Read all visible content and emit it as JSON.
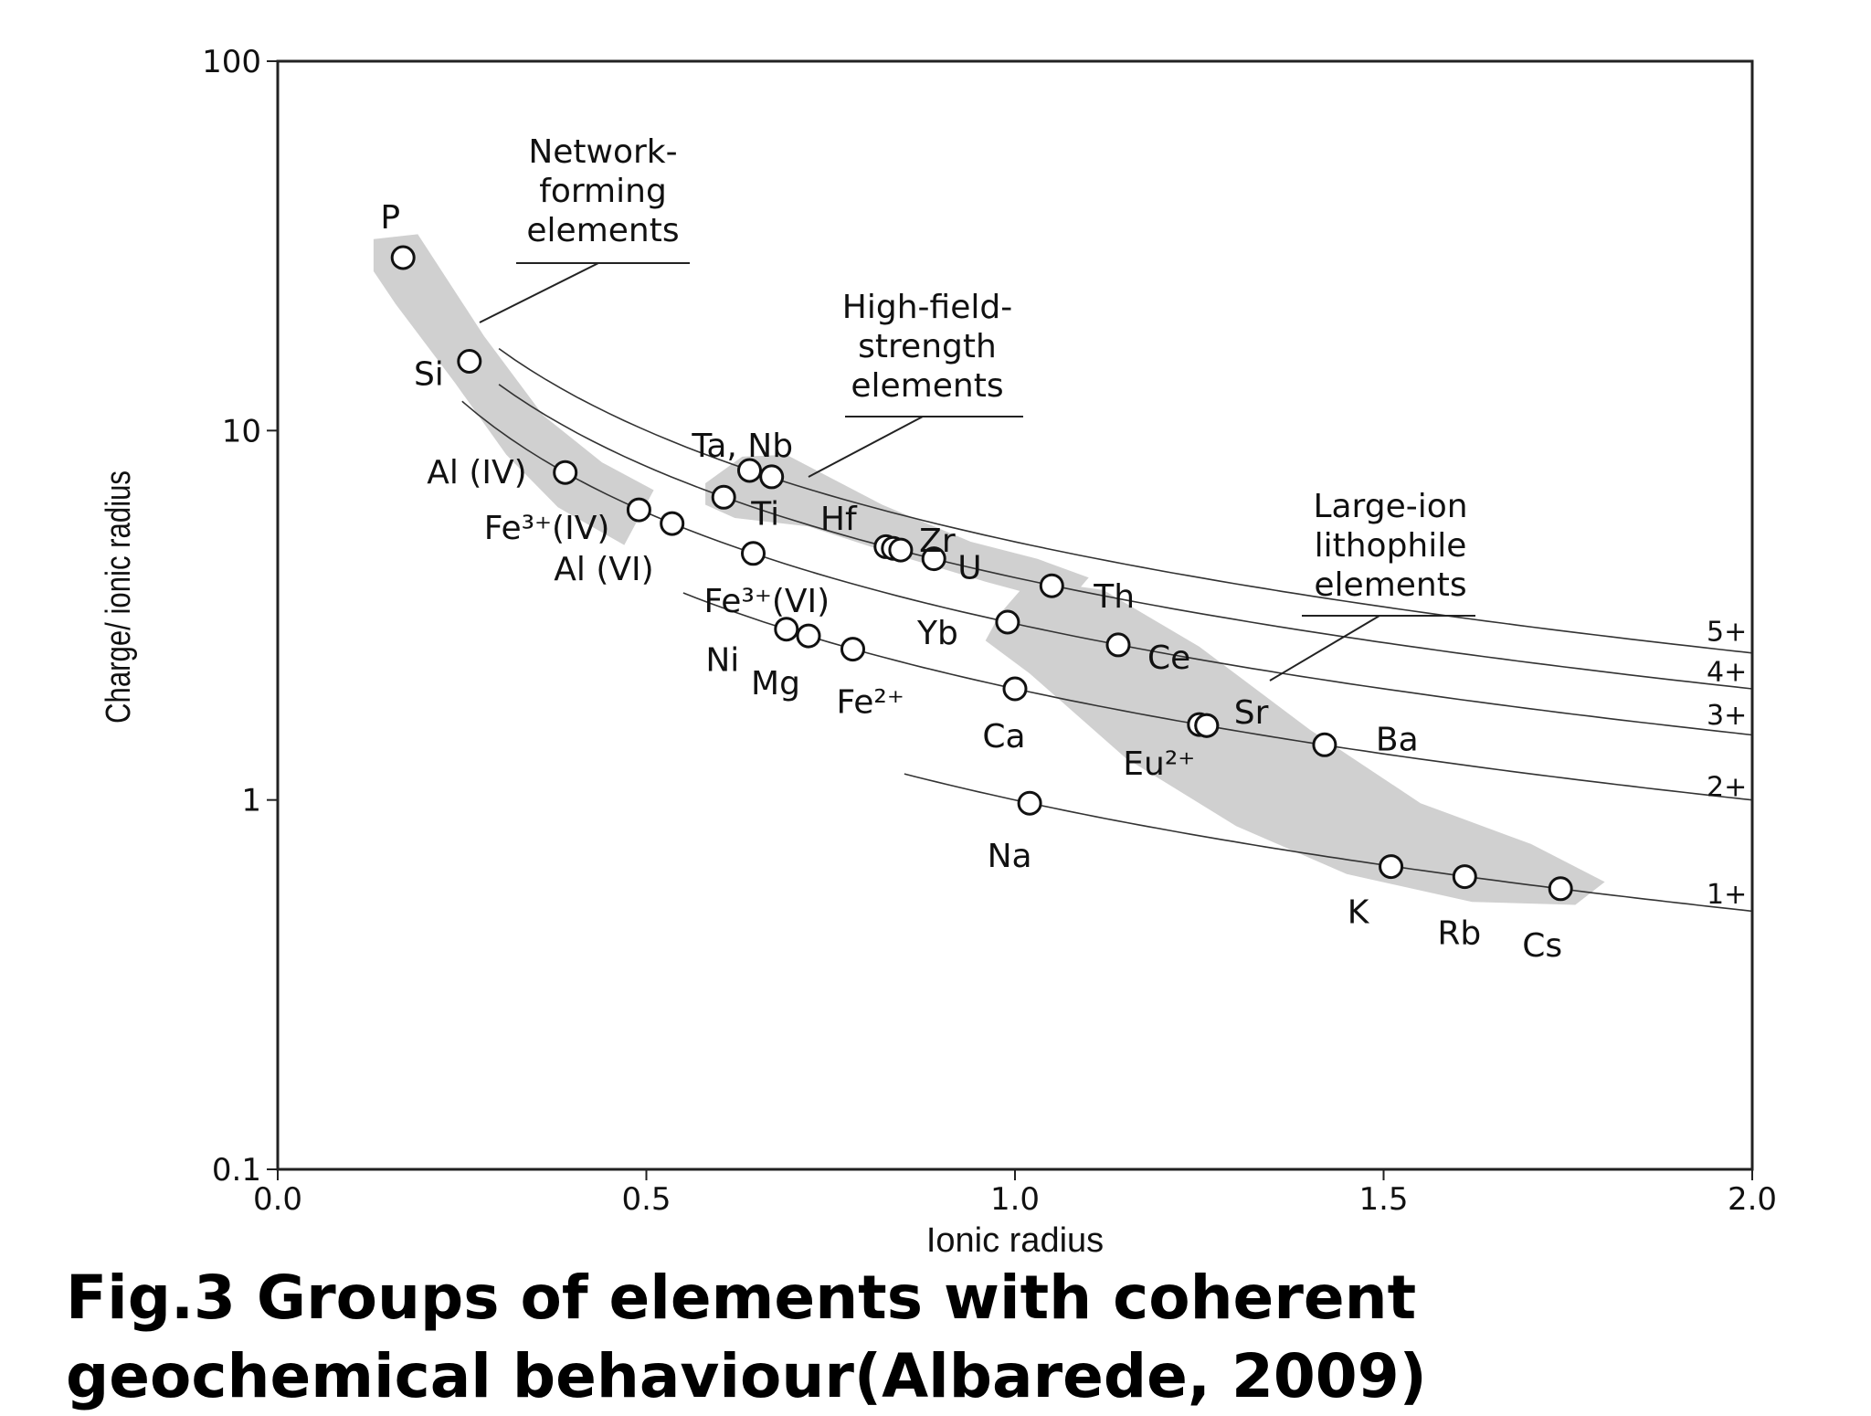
{
  "chart_data": {
    "type": "scatter",
    "title": "",
    "xlabel": "Ionic radius",
    "ylabel": "Charge/ ionic radius",
    "xlim": [
      0.0,
      2.0
    ],
    "ylim": [
      0.1,
      100
    ],
    "yscale": "log",
    "xticks": [
      "0.0",
      "0.5",
      "1.0",
      "1.5",
      "2.0"
    ],
    "yticks": [
      "0.1",
      "1",
      "10",
      "100"
    ],
    "grid": false,
    "points": [
      {
        "label": "P",
        "x": 0.17,
        "y": 29.4
      },
      {
        "label": "Si",
        "x": 0.26,
        "y": 15.4
      },
      {
        "label": "Al (IV)",
        "x": 0.39,
        "y": 7.7
      },
      {
        "label": "Fe³⁺(IV)",
        "x": 0.49,
        "y": 6.1
      },
      {
        "label": "Al (VI)",
        "x": 0.535,
        "y": 5.6
      },
      {
        "label": "",
        "x": 0.64,
        "y": 7.8
      },
      {
        "label": "Ta, Nb",
        "x": 0.67,
        "y": 7.5
      },
      {
        "label": "Ti",
        "x": 0.605,
        "y": 6.6
      },
      {
        "label": "Fe³⁺(VI)",
        "x": 0.645,
        "y": 4.65
      },
      {
        "label": "",
        "x": 0.825,
        "y": 4.85
      },
      {
        "label": "Hf",
        "x": 0.835,
        "y": 4.8
      },
      {
        "label": "Zr",
        "x": 0.845,
        "y": 4.75
      },
      {
        "label": "U",
        "x": 0.89,
        "y": 4.5
      },
      {
        "label": "Th",
        "x": 1.05,
        "y": 3.8
      },
      {
        "label": "Yb",
        "x": 0.99,
        "y": 3.03
      },
      {
        "label": "Ni",
        "x": 0.69,
        "y": 2.9
      },
      {
        "label": "Mg",
        "x": 0.72,
        "y": 2.78
      },
      {
        "label": "Fe²⁺",
        "x": 0.78,
        "y": 2.56
      },
      {
        "label": "Ce",
        "x": 1.14,
        "y": 2.63
      },
      {
        "label": "Ca",
        "x": 1.0,
        "y": 2.0
      },
      {
        "label": "",
        "x": 1.25,
        "y": 1.6
      },
      {
        "label": "Eu²⁺",
        "x": 1.26,
        "y": 1.59
      },
      {
        "label": "Sr",
        "x": 1.26,
        "y": 1.59
      },
      {
        "label": "Ba",
        "x": 1.42,
        "y": 1.41
      },
      {
        "label": "Na",
        "x": 1.02,
        "y": 0.98
      },
      {
        "label": "K",
        "x": 1.51,
        "y": 0.66
      },
      {
        "label": "Rb",
        "x": 1.61,
        "y": 0.62
      },
      {
        "label": "Cs",
        "x": 1.74,
        "y": 0.575
      }
    ],
    "iso_charge_curves": [
      {
        "name": "5+",
        "charge": 5,
        "x_range": [
          0.3,
          2.0
        ]
      },
      {
        "name": "4+",
        "charge": 4,
        "x_range": [
          0.3,
          2.0
        ]
      },
      {
        "name": "3+",
        "charge": 3,
        "x_range": [
          0.25,
          2.0
        ]
      },
      {
        "name": "2+",
        "charge": 2,
        "x_range": [
          0.55,
          2.0
        ]
      },
      {
        "name": "1+",
        "charge": 1,
        "x_range": [
          0.85,
          2.0
        ]
      }
    ],
    "groups": [
      {
        "name": "Network-forming elements",
        "lines": [
          "Network-",
          "forming",
          "elements"
        ]
      },
      {
        "name": "High-field-strength elements",
        "lines": [
          "High-field-",
          "strength",
          "elements"
        ]
      },
      {
        "name": "Large-ion lithophile elements",
        "lines": [
          "Large-ion",
          "lithophile",
          "elements"
        ]
      }
    ]
  },
  "caption": {
    "line1": "Fig.3 Groups of elements with coherent",
    "line2": "geochemical behaviour(Albarede, 2009)"
  }
}
